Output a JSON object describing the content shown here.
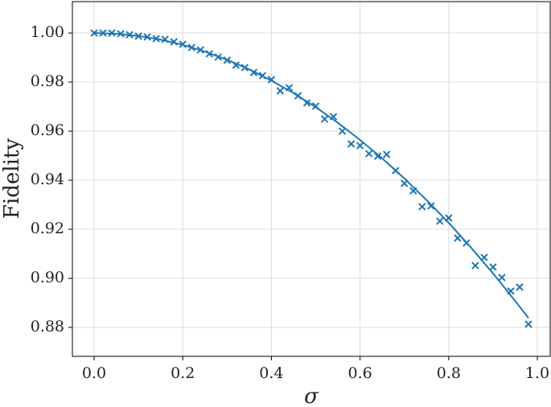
{
  "chart_data": {
    "type": "scatter",
    "x_label": "σ",
    "y_label": "Fidelity",
    "xlim": [
      -0.049,
      1.029
    ],
    "ylim": [
      0.8682,
      1.0128
    ],
    "xticks": [
      {
        "value": 0,
        "label": "0.0"
      },
      0.2,
      0.4,
      0.6,
      0.8,
      {
        "value": 1,
        "label": "1.0"
      }
    ],
    "yticks": [
      0.88,
      {
        "value": 0.9,
        "label": "0.90"
      },
      0.92,
      0.94,
      0.96,
      0.98,
      {
        "value": 1,
        "label": "1.00"
      }
    ],
    "grid": true,
    "series": [
      {
        "type": "scatter",
        "color": "#1f77b4",
        "x": [
          0,
          0.02,
          0.04,
          0.06,
          0.08,
          0.1,
          0.12,
          0.14,
          0.16,
          0.18,
          0.2,
          0.22,
          0.24,
          0.26,
          0.28,
          0.3,
          0.32,
          0.34,
          0.36,
          0.38,
          0.4,
          0.42,
          0.44,
          0.46,
          0.48,
          0.5,
          0.52,
          0.54,
          0.56,
          0.58,
          0.6,
          0.62,
          0.64,
          0.66,
          0.68,
          0.7,
          0.72,
          0.74,
          0.76,
          0.78,
          0.8,
          0.82,
          0.84,
          0.86,
          0.88,
          0.9,
          0.92,
          0.94,
          0.96,
          0.98
        ],
        "values": [
          1.0,
          1.0,
          1.0,
          0.9997,
          0.9993,
          0.9987,
          0.9984,
          0.9977,
          0.9974,
          0.9964,
          0.9954,
          0.9941,
          0.9931,
          0.9915,
          0.9902,
          0.9889,
          0.9869,
          0.9859,
          0.9839,
          0.9826,
          0.981,
          0.9764,
          0.9777,
          0.9744,
          0.9715,
          0.9702,
          0.9649,
          0.9659,
          0.96,
          0.9548,
          0.9541,
          0.9508,
          0.9498,
          0.9505,
          0.9439,
          0.9387,
          0.9357,
          0.9292,
          0.9295,
          0.9233,
          0.9246,
          0.9164,
          0.9144,
          0.9052,
          0.9085,
          0.9046,
          0.9003,
          0.8948,
          0.8964,
          0.8813
        ]
      },
      {
        "type": "line",
        "color": "#1f77b4",
        "x": [
          0,
          0.05,
          0.1,
          0.15,
          0.2,
          0.25,
          0.3,
          0.35,
          0.4,
          0.45,
          0.5,
          0.55,
          0.6,
          0.65,
          0.7,
          0.75,
          0.8,
          0.85,
          0.9,
          0.95,
          0.98
        ],
        "values": [
          1.0,
          0.9997,
          0.9988,
          0.9973,
          0.9952,
          0.9924,
          0.9891,
          0.9852,
          0.9806,
          0.9755,
          0.9698,
          0.9634,
          0.9564,
          0.9489,
          0.9407,
          0.9319,
          0.9226,
          0.9126,
          0.902,
          0.8908,
          0.8838
        ]
      }
    ]
  }
}
